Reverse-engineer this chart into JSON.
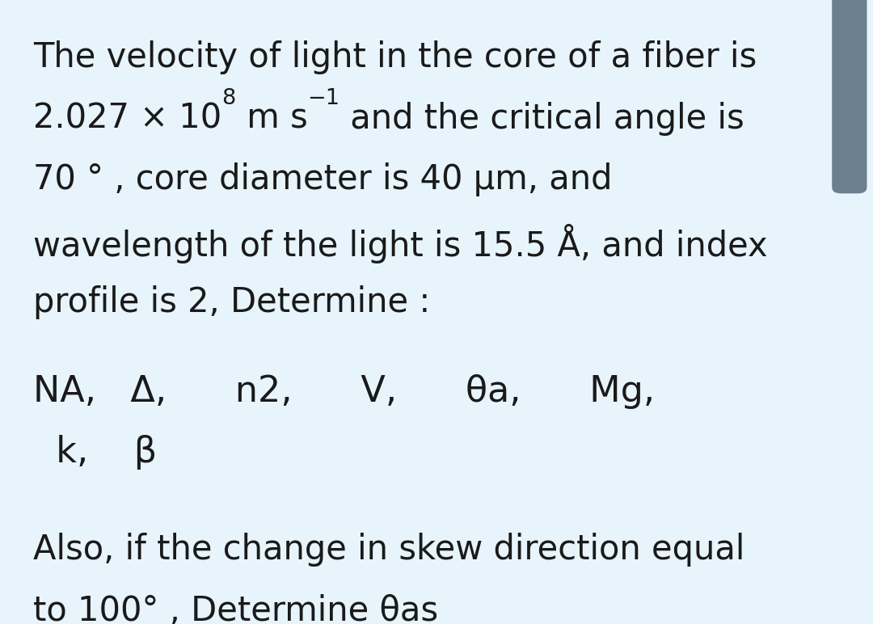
{
  "background_color": "#e8f4fb",
  "right_bar_color": "#6b7f8e",
  "text_color": "#1a1a1a",
  "font_size_body": 30,
  "font_size_list": 32,
  "line1": "The velocity of light in the core of a fiber is",
  "line3": "70 ° , core diameter is 40 μm, and",
  "line4": "wavelength of the light is 15.5 Å, and index",
  "line5": "profile is 2, Determine :",
  "list_line1": "NA,   Δ,      n2,      V,      θa,      Mg,",
  "list_line2": "  k,    β",
  "also_line1": "Also, if the change in skew direction equal",
  "also_line2": "to 100° , Determine θas",
  "line2_base": "2.027 × 10",
  "line2_sup1": "8",
  "line2_mid": " m s",
  "line2_sup2": "−1",
  "line2_end": " and the critical angle is",
  "figwidth": 10.8,
  "figheight": 7.72,
  "dpi": 100
}
